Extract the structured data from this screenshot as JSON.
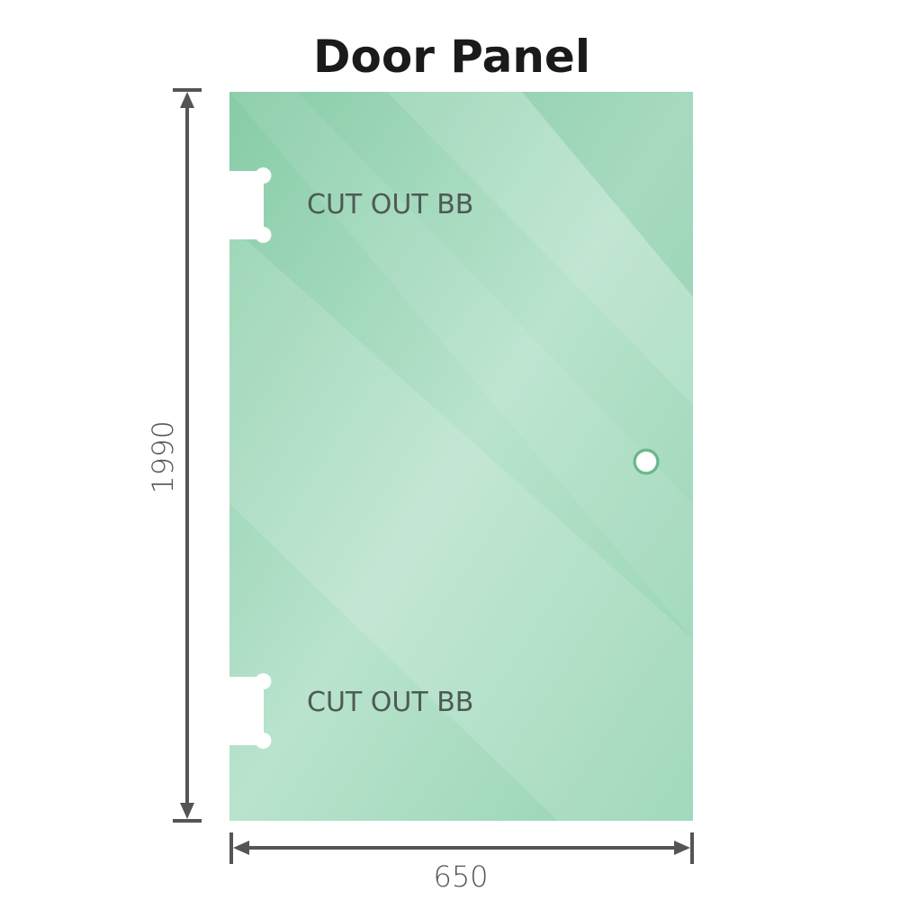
{
  "title": "Door Panel",
  "dimensions": {
    "height": "1990",
    "width": "650"
  },
  "cutouts": [
    {
      "label": "CUT OUT BB"
    },
    {
      "label": "CUT OUT BB"
    }
  ],
  "colors": {
    "glass": "#8fd1ad",
    "glass_light": "#bfe6d2",
    "dimension_line": "#555555"
  }
}
